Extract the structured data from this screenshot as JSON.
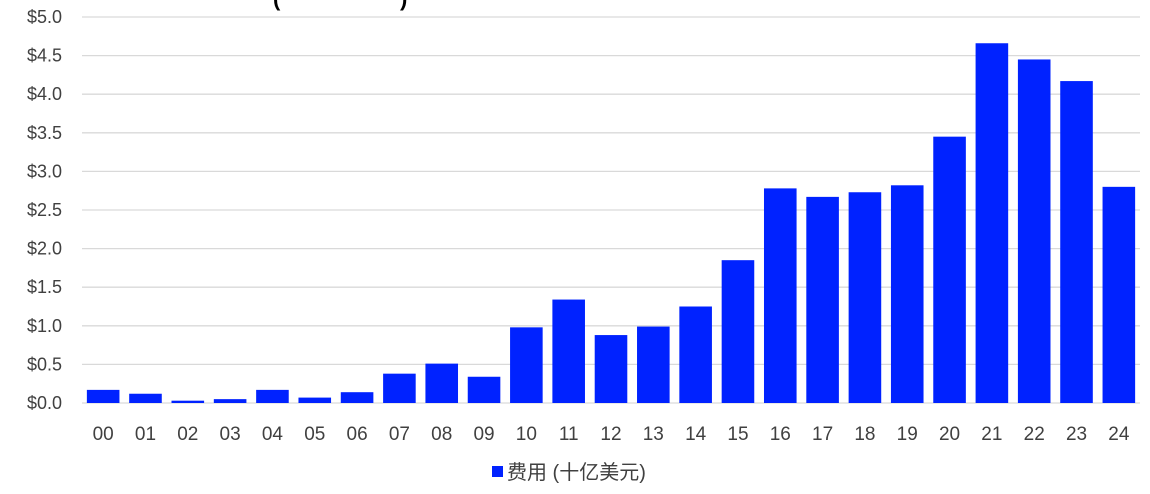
{
  "chart_data": {
    "type": "bar",
    "title_fragment": "(",
    "title_fragment_2": ")",
    "categories": [
      "00",
      "01",
      "02",
      "03",
      "04",
      "05",
      "06",
      "07",
      "08",
      "09",
      "10",
      "11",
      "12",
      "13",
      "14",
      "15",
      "16",
      "17",
      "18",
      "19",
      "20",
      "21",
      "22",
      "23",
      "24"
    ],
    "series": [
      {
        "name": "费用 (十亿美元)",
        "color": "#0022ff",
        "values": [
          0.17,
          0.12,
          0.03,
          0.05,
          0.17,
          0.07,
          0.14,
          0.38,
          0.51,
          0.34,
          0.98,
          1.34,
          0.88,
          0.99,
          1.25,
          1.85,
          2.78,
          2.67,
          2.73,
          2.82,
          3.45,
          4.66,
          4.45,
          4.17,
          2.8
        ]
      }
    ],
    "ylim": [
      0,
      5.0
    ],
    "y_ticks": [
      "$0.0",
      "$0.5",
      "$1.0",
      "$1.5",
      "$2.0",
      "$2.5",
      "$3.0",
      "$3.5",
      "$4.0",
      "$4.5",
      "$5.0"
    ],
    "xlabel": "",
    "ylabel": "",
    "grid": true,
    "legend_position": "bottom-center"
  }
}
